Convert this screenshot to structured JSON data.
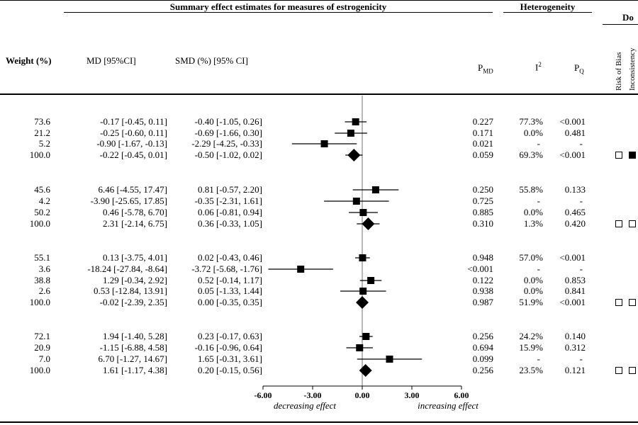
{
  "header": {
    "group_summary": "Summary effect estimates for measures of estrogenicity",
    "group_heterogeneity": "Heterogeneity",
    "group_do": "Do",
    "col_weight": "Weight (%)",
    "col_md": "MD [95%CI]",
    "col_smd": "SMD (%) [95% CI]",
    "col_pmd_main": "P",
    "col_pmd_sub": "MD",
    "col_i2_main": "I",
    "col_i2_sup": "2",
    "col_pq_main": "P",
    "col_pq_sub": "Q",
    "col_risk": "Risk of Bias",
    "col_inconsistency": "Inconsistency"
  },
  "rows": [
    {
      "weight": "73.6",
      "md": "-0.17 [-0.45, 0.11]",
      "smd": "-0.40 [-1.05, 0.26]",
      "pmd": "0.227",
      "i2": "77.3%",
      "pq": "<0.001"
    },
    {
      "weight": "21.2",
      "md": "-0.25 [-0.60, 0.11]",
      "smd": "-0.69 [-1.66, 0.30]",
      "pmd": "0.171",
      "i2": "0.0%",
      "pq": "0.481"
    },
    {
      "weight": "5.2",
      "md": "-0.90 [-1.67, -0.13]",
      "smd": "-2.29 [-4.25, -0.33]",
      "pmd": "0.021",
      "i2": "-",
      "pq": "-"
    },
    {
      "weight": "100.0",
      "md": "-0.22 [-0.45, 0.01]",
      "smd": "-0.50 [-1.02, 0.02]",
      "pmd": "0.059",
      "i2": "69.3%",
      "pq": "<0.001"
    },
    {
      "weight": "45.6",
      "md": "6.46 [-4.55, 17.47]",
      "smd": "0.81 [-0.57, 2.20]",
      "pmd": "0.250",
      "i2": "55.8%",
      "pq": "0.133"
    },
    {
      "weight": "4.2",
      "md": "-3.90 [-25.65, 17.85]",
      "smd": "-0.35 [-2.31, 1.61]",
      "pmd": "0.725",
      "i2": "-",
      "pq": "-"
    },
    {
      "weight": "50.2",
      "md": "0.46 [-5.78, 6.70]",
      "smd": "0.06 [-0.81, 0.94]",
      "pmd": "0.885",
      "i2": "0.0%",
      "pq": "0.465"
    },
    {
      "weight": "100.0",
      "md": "2.31 [-2.14, 6.75]",
      "smd": "0.36 [-0.33, 1.05]",
      "pmd": "0.310",
      "i2": "1.3%",
      "pq": "0.420"
    },
    {
      "weight": "55.1",
      "md": "0.13 [-3.75, 4.01]",
      "smd": "0.02 [-0.43, 0.46]",
      "pmd": "0.948",
      "i2": "57.0%",
      "pq": "<0.001"
    },
    {
      "weight": "3.6",
      "md": "-18.24 [-27.84, -8.64]",
      "smd": "-3.72 [-5.68, -1.76]",
      "pmd": "<0.001",
      "i2": "-",
      "pq": "-"
    },
    {
      "weight": "38.8",
      "md": "1.29 [-0.34, 2.92]",
      "smd": "0.52 [-0.14, 1.17]",
      "pmd": "0.122",
      "i2": "0.0%",
      "pq": "0.853"
    },
    {
      "weight": "2.6",
      "md": "0.53 [-12.84, 13.91]",
      "smd": "0.05 [-1.33, 1.44]",
      "pmd": "0.938",
      "i2": "0.0%",
      "pq": "0.841"
    },
    {
      "weight": "100.0",
      "md": "-0.02 [-2.39, 2.35]",
      "smd": "0.00 [-0.35, 0.35]",
      "pmd": "0.987",
      "i2": "51.9%",
      "pq": "<0.001"
    },
    {
      "weight": "72.1",
      "md": "1.94 [-1.40, 5.28]",
      "smd": "0.23 [-0.17, 0.63]",
      "pmd": "0.256",
      "i2": "24.2%",
      "pq": "0.140"
    },
    {
      "weight": "20.9",
      "md": "-1.15 [-6.88, 4.58]",
      "smd": "-0.16 [-0.96, 0.64]",
      "pmd": "0.694",
      "i2": "15.9%",
      "pq": "0.312"
    },
    {
      "weight": "7.0",
      "md": "6.70 [-1.27, 14.67]",
      "smd": "1.65 [-0.31, 3.61]",
      "pmd": "0.099",
      "i2": "-",
      "pq": "-"
    },
    {
      "weight": "100.0",
      "md": "1.61 [-1.17, 4.38]",
      "smd": "0.20 [-0.15, 0.56]",
      "pmd": "0.256",
      "i2": "23.5%",
      "pq": "0.121"
    }
  ],
  "grade_boxes": [
    {
      "risk_of_bias": "open",
      "inconsistency": "filled"
    },
    {
      "risk_of_bias": "open",
      "inconsistency": "open"
    },
    {
      "risk_of_bias": "open",
      "inconsistency": "open"
    },
    {
      "risk_of_bias": "open",
      "inconsistency": "open"
    }
  ],
  "chart_data": {
    "type": "scatter",
    "title": "",
    "xlabel": "",
    "ylabel": "",
    "xlim": [
      -6.0,
      6.0
    ],
    "x_ticks": [
      "-6.00",
      "-3.00",
      "0.00",
      "3.00",
      "6.00"
    ],
    "annotations": {
      "left": "decreasing effect",
      "right": "increasing effect"
    },
    "reference_line_x": 0,
    "points": [
      {
        "estimate": -0.4,
        "lower": -1.05,
        "upper": 0.26,
        "marker": "square"
      },
      {
        "estimate": -0.69,
        "lower": -1.66,
        "upper": 0.3,
        "marker": "square"
      },
      {
        "estimate": -2.29,
        "lower": -4.25,
        "upper": -0.33,
        "marker": "square"
      },
      {
        "estimate": -0.5,
        "lower": -1.02,
        "upper": 0.02,
        "marker": "diamond"
      },
      {
        "estimate": 0.81,
        "lower": -0.57,
        "upper": 2.2,
        "marker": "square"
      },
      {
        "estimate": -0.35,
        "lower": -2.31,
        "upper": 1.61,
        "marker": "square"
      },
      {
        "estimate": 0.06,
        "lower": -0.81,
        "upper": 0.94,
        "marker": "square"
      },
      {
        "estimate": 0.36,
        "lower": -0.33,
        "upper": 1.05,
        "marker": "diamond"
      },
      {
        "estimate": 0.02,
        "lower": -0.43,
        "upper": 0.46,
        "marker": "square"
      },
      {
        "estimate": -3.72,
        "lower": -5.68,
        "upper": -1.76,
        "marker": "square"
      },
      {
        "estimate": 0.52,
        "lower": -0.14,
        "upper": 1.17,
        "marker": "square"
      },
      {
        "estimate": 0.05,
        "lower": -1.33,
        "upper": 1.44,
        "marker": "square"
      },
      {
        "estimate": 0.0,
        "lower": -0.35,
        "upper": 0.35,
        "marker": "diamond"
      },
      {
        "estimate": 0.23,
        "lower": -0.17,
        "upper": 0.63,
        "marker": "square"
      },
      {
        "estimate": -0.16,
        "lower": -0.96,
        "upper": 0.64,
        "marker": "square"
      },
      {
        "estimate": 1.65,
        "lower": -0.31,
        "upper": 3.61,
        "marker": "square"
      },
      {
        "estimate": 0.2,
        "lower": -0.15,
        "upper": 0.56,
        "marker": "diamond"
      }
    ]
  }
}
